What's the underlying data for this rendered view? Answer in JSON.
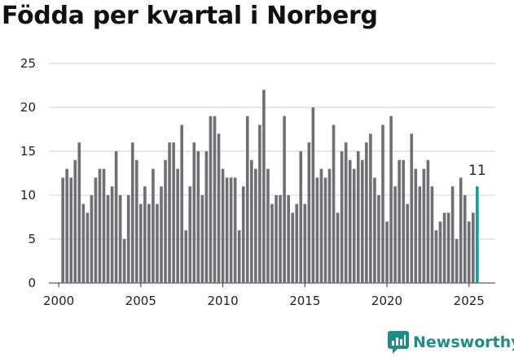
{
  "chart_data": {
    "type": "bar",
    "title": "Födda per kvartal i Norberg",
    "xlabel": "",
    "ylabel": "",
    "ylim": [
      0,
      25
    ],
    "yticks": [
      0,
      5,
      10,
      15,
      20,
      25
    ],
    "xticks": [
      2000,
      2005,
      2010,
      2015,
      2020,
      2025
    ],
    "xlim": [
      1999.4,
      2026.6
    ],
    "start_year": 2000,
    "grid": true,
    "bar_color": "#706f74",
    "highlight_color": "#14a099",
    "highlight_label": "11",
    "values": [
      12,
      13,
      12,
      14,
      16,
      9,
      8,
      10,
      12,
      13,
      13,
      10,
      11,
      15,
      10,
      5,
      10,
      16,
      14,
      9,
      11,
      9,
      13,
      9,
      11,
      14,
      16,
      16,
      13,
      18,
      6,
      11,
      16,
      15,
      10,
      15,
      19,
      19,
      17,
      13,
      12,
      12,
      12,
      6,
      11,
      19,
      14,
      13,
      18,
      22,
      13,
      9,
      10,
      10,
      19,
      10,
      8,
      9,
      15,
      9,
      16,
      20,
      12,
      13,
      12,
      13,
      18,
      8,
      15,
      16,
      14,
      13,
      15,
      14,
      16,
      17,
      12,
      10,
      18,
      7,
      19,
      11,
      14,
      14,
      9,
      17,
      13,
      11,
      13,
      14,
      11,
      6,
      7,
      8,
      8,
      11,
      5,
      12,
      10,
      7,
      8,
      11
    ]
  },
  "brand": {
    "name": "Newsworthy",
    "color": "#1f8c86"
  }
}
